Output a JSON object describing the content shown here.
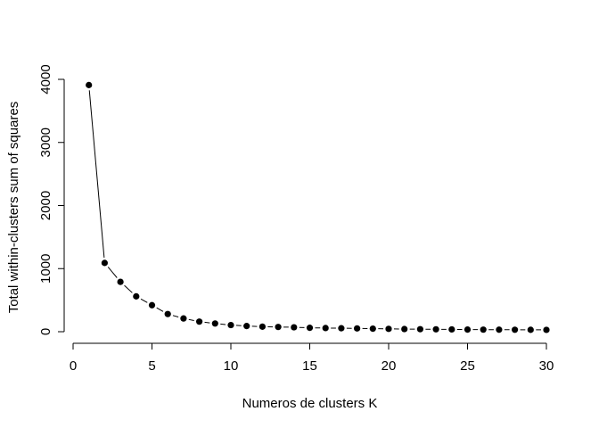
{
  "chart_data": {
    "type": "line",
    "title": "",
    "xlabel": "Numeros de clusters K",
    "ylabel": "Total within-clusters sum of squares",
    "xlim": [
      0,
      30
    ],
    "ylim": [
      0,
      4000
    ],
    "x_ticks": [
      0,
      5,
      10,
      15,
      20,
      25,
      30
    ],
    "y_ticks": [
      0,
      1000,
      2000,
      3000,
      4000
    ],
    "grid": false,
    "legend": "none",
    "marker": "filled-circle",
    "line_style": "solid-with-gaps",
    "colors": {
      "line": "#000000",
      "point": "#000000",
      "background": "#ffffff"
    },
    "series": [
      {
        "x": [
          1,
          2,
          3,
          4,
          5,
          6,
          7,
          8,
          9,
          10,
          11,
          12,
          13,
          14,
          15,
          16,
          17,
          18,
          19,
          20,
          21,
          22,
          23,
          24,
          25,
          26,
          27,
          28,
          29,
          30
        ],
        "values": [
          3910,
          1090,
          790,
          560,
          420,
          280,
          210,
          160,
          130,
          105,
          90,
          80,
          75,
          70,
          62,
          58,
          55,
          52,
          48,
          45,
          42,
          40,
          38,
          36,
          34,
          33,
          32,
          31,
          30,
          29
        ]
      }
    ]
  }
}
